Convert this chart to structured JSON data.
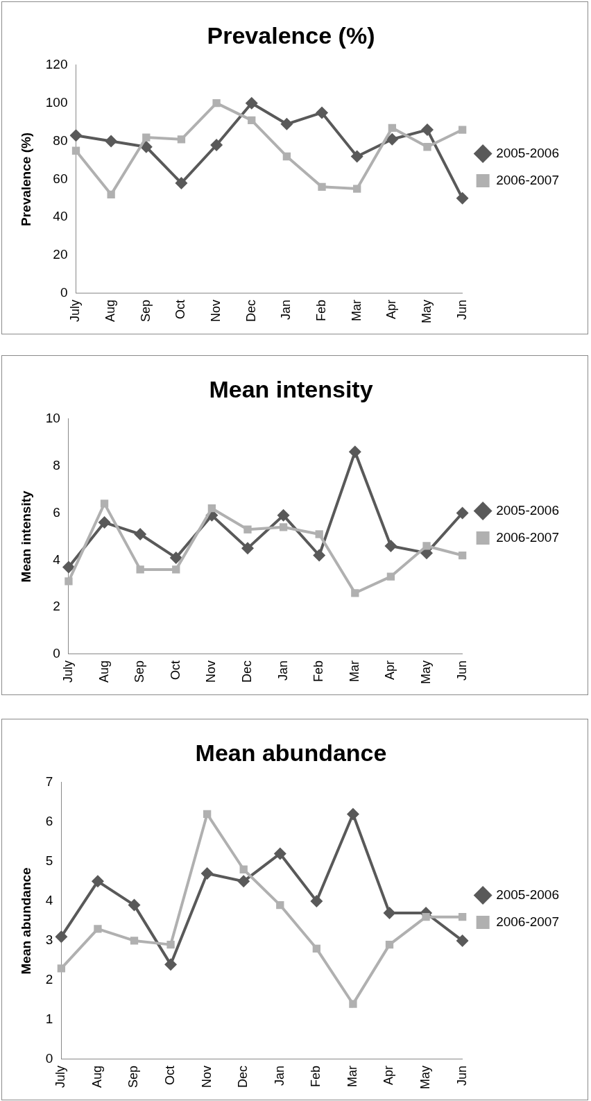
{
  "chart_data": [
    {
      "type": "line",
      "title": "Prevalence (%)",
      "ylabel": "Prevalence (%)",
      "categories": [
        "July",
        "Aug",
        "Sep",
        "Oct",
        "Nov",
        "Dec",
        "Jan",
        "Feb",
        "Mar",
        "Apr",
        "May",
        "Jun"
      ],
      "ylim": [
        0,
        120
      ],
      "yticks": [
        0,
        20,
        40,
        60,
        80,
        100,
        120
      ],
      "grid": false,
      "legend": "right",
      "series": [
        {
          "name": "2005-2006",
          "color": "#595959",
          "marker": "diamond",
          "values": [
            83,
            80,
            77,
            58,
            78,
            100,
            89,
            95,
            72,
            81,
            86,
            50
          ]
        },
        {
          "name": "2006-2007",
          "color": "#b0b0b0",
          "marker": "square",
          "values": [
            75,
            52,
            82,
            81,
            100,
            91,
            72,
            56,
            55,
            87,
            77,
            86
          ]
        }
      ]
    },
    {
      "type": "line",
      "title": "Mean intensity",
      "ylabel": "Mean intensity",
      "categories": [
        "July",
        "Aug",
        "Sep",
        "Oct",
        "Nov",
        "Dec",
        "Jan",
        "Feb",
        "Mar",
        "Apr",
        "May",
        "Jun"
      ],
      "ylim": [
        0,
        10
      ],
      "yticks": [
        0,
        2,
        4,
        6,
        8,
        10
      ],
      "grid": false,
      "legend": "right",
      "series": [
        {
          "name": "2005-2006",
          "color": "#595959",
          "marker": "diamond",
          "values": [
            3.7,
            5.6,
            5.1,
            4.1,
            5.9,
            4.5,
            5.9,
            4.2,
            8.6,
            4.6,
            4.3,
            6.0
          ]
        },
        {
          "name": "2006-2007",
          "color": "#b0b0b0",
          "marker": "square",
          "values": [
            3.1,
            6.4,
            3.6,
            3.6,
            6.2,
            5.3,
            5.4,
            5.1,
            2.6,
            3.3,
            4.6,
            4.2
          ]
        }
      ]
    },
    {
      "type": "line",
      "title": "Mean abundance",
      "ylabel": "Mean abundance",
      "categories": [
        "July",
        "Aug",
        "Sep",
        "Oct",
        "Nov",
        "Dec",
        "Jan",
        "Feb",
        "Mar",
        "Apr",
        "May",
        "Jun"
      ],
      "ylim": [
        0,
        7
      ],
      "yticks": [
        0,
        1,
        2,
        3,
        4,
        5,
        6,
        7
      ],
      "grid": false,
      "legend": "right",
      "series": [
        {
          "name": "2005-2006",
          "color": "#595959",
          "marker": "diamond",
          "values": [
            3.1,
            4.5,
            3.9,
            2.4,
            4.7,
            4.5,
            5.2,
            4.0,
            6.2,
            3.7,
            3.7,
            3.0
          ]
        },
        {
          "name": "2006-2007",
          "color": "#b0b0b0",
          "marker": "square",
          "values": [
            2.3,
            3.3,
            3.0,
            2.9,
            6.2,
            4.8,
            3.9,
            2.8,
            1.4,
            2.9,
            3.6,
            3.6
          ]
        }
      ]
    }
  ]
}
